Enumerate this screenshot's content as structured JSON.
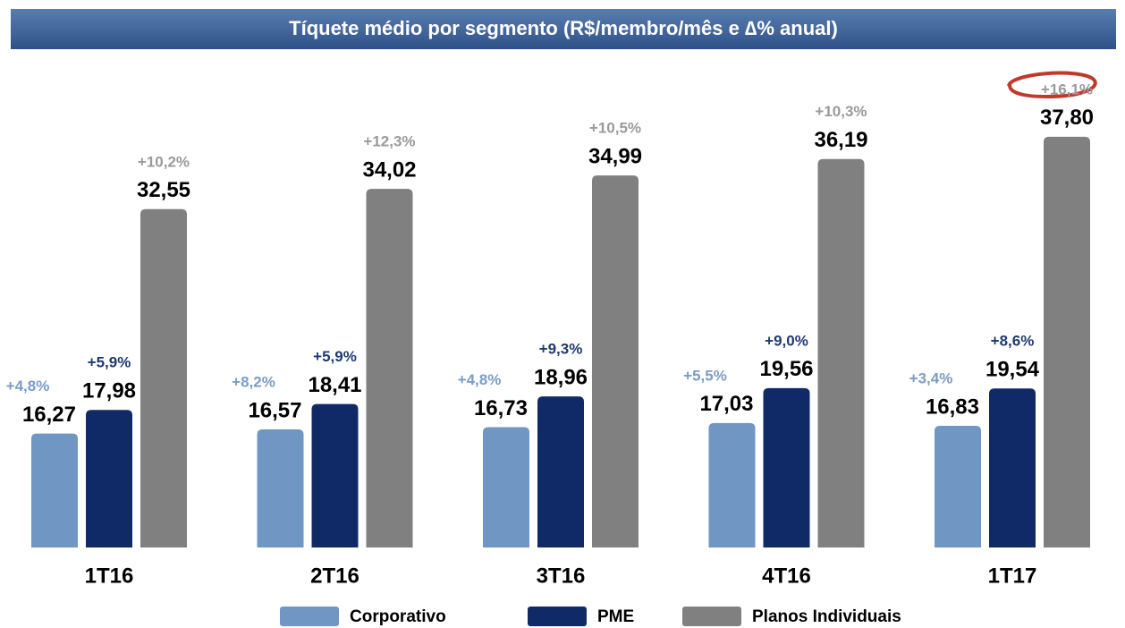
{
  "chart_data": {
    "type": "bar",
    "title": "Tíquete médio por segmento (R$/membro/mês e ∆% anual)",
    "categories": [
      "1T16",
      "2T16",
      "3T16",
      "4T16",
      "1T17"
    ],
    "ylim": [
      8,
      40
    ],
    "series": [
      {
        "name": "Corporativo",
        "color": "#7096c4",
        "values": [
          16.27,
          16.57,
          16.73,
          17.03,
          16.83
        ],
        "value_labels": [
          "16,27",
          "16,57",
          "16,73",
          "17,03",
          "16,83"
        ],
        "annotations": [
          "+4,8%",
          "+8,2%",
          "+4,8%",
          "+5,5%",
          "+3,4%"
        ]
      },
      {
        "name": "PME",
        "color": "#102a68",
        "values": [
          17.98,
          18.41,
          18.96,
          19.56,
          19.54
        ],
        "value_labels": [
          "17,98",
          "18,41",
          "18,96",
          "19,56",
          "19,54"
        ],
        "annotations": [
          "+5,9%",
          "+5,9%",
          "+9,3%",
          "+9,0%",
          "+8,6%"
        ]
      },
      {
        "name": "Planos Individuais",
        "color": "#808080",
        "values": [
          32.55,
          34.02,
          34.99,
          36.19,
          37.8
        ],
        "value_labels": [
          "32,55",
          "34,02",
          "34,99",
          "36,19",
          "37,80"
        ],
        "annotations": [
          "+10,2%",
          "+12,3%",
          "+10,5%",
          "+10,3%",
          "+16,1%"
        ]
      }
    ]
  }
}
